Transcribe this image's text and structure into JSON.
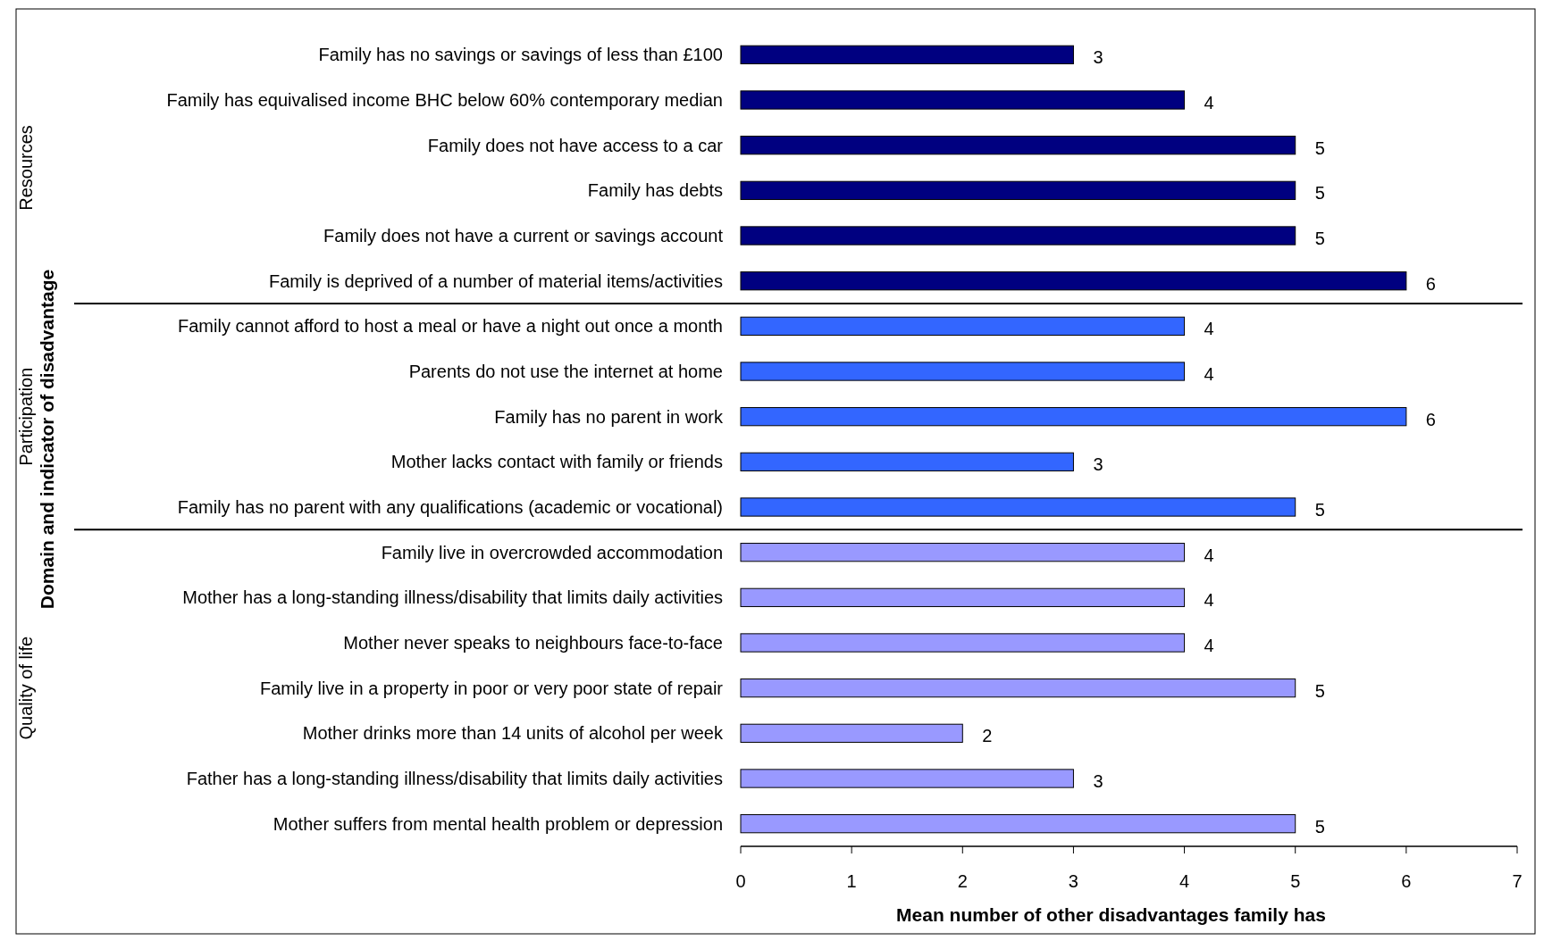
{
  "chart_data": {
    "type": "bar",
    "orientation": "horizontal",
    "xlabel": "Mean number of other disadvantages family has",
    "categories": [
      "Family has no savings or savings of less than £100",
      "Family has equivalised income BHC below 60% contemporary median",
      "Family does not have access to a car",
      "Family has debts",
      "Family does not have a current or savings account",
      "Family is deprived of a number of material items/activities",
      "Family cannot afford to host a meal or have a night out once a month",
      "Parents do not use the internet at home",
      "Family has no parent in work",
      "Mother lacks contact with family or friends",
      "Family has no parent with any qualifications (academic or vocational)",
      "Family live in overcrowded accommodation",
      "Mother has a long-standing illness/disability that limits daily activities",
      "Mother never speaks to neighbours face-to-face",
      "Family live in a property in poor or very poor state of repair",
      "Mother drinks more than 14 units of alcohol per week",
      "Father has a long-standing illness/disability that limits daily activities",
      "Mother suffers from mental health problem or depression"
    ],
    "values": [
      3,
      4,
      5,
      5,
      5,
      6,
      4,
      4,
      6,
      3,
      5,
      4,
      4,
      4,
      5,
      2,
      3,
      5
    ],
    "colors": [
      "#000080",
      "#000080",
      "#000080",
      "#000080",
      "#000080",
      "#000080",
      "#3366ff",
      "#3366ff",
      "#3366ff",
      "#3366ff",
      "#3366ff",
      "#9999ff",
      "#9999ff",
      "#9999ff",
      "#9999ff",
      "#9999ff",
      "#9999ff",
      "#9999ff"
    ],
    "xlim": [
      0,
      7
    ],
    "xticks": [
      0,
      1,
      2,
      3,
      4,
      5,
      6,
      7
    ],
    "data_labels": true,
    "grid": false,
    "annotations": [
      "Resources",
      "Participation",
      "Quality of life",
      "Domain and indicator of disadvantage"
    ]
  }
}
